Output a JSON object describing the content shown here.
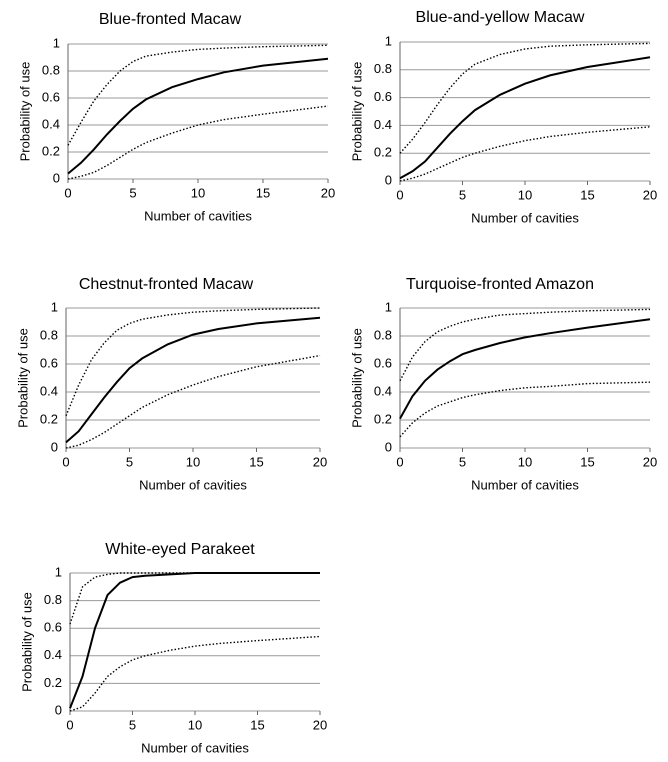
{
  "chart_data": [
    {
      "type": "line",
      "title": "Blue-fronted Macaw",
      "x_label": "Number of cavities",
      "y_label": "Probability of use",
      "x": [
        0,
        1,
        2,
        3,
        4,
        5,
        6,
        8,
        10,
        12,
        15,
        20
      ],
      "series": [
        {
          "color": "#000000",
          "style": "solid",
          "values": [
            0.04,
            0.12,
            0.22,
            0.33,
            0.43,
            0.52,
            0.59,
            0.68,
            0.74,
            0.79,
            0.84,
            0.89
          ]
        },
        {
          "color": "#000000",
          "style": "dotted",
          "values": [
            0.25,
            0.42,
            0.58,
            0.7,
            0.8,
            0.87,
            0.91,
            0.94,
            0.96,
            0.97,
            0.98,
            0.99
          ]
        },
        {
          "color": "#000000",
          "style": "dotted",
          "values": [
            0.0,
            0.02,
            0.05,
            0.1,
            0.16,
            0.22,
            0.27,
            0.34,
            0.4,
            0.44,
            0.48,
            0.54
          ]
        }
      ],
      "xlim": [
        0,
        20
      ],
      "xticks": [
        0,
        5,
        10,
        15,
        20
      ],
      "ylim": [
        0,
        1
      ],
      "yticks": [
        0,
        0.2,
        0.4,
        0.6,
        0.8,
        1
      ],
      "grid": true
    },
    {
      "type": "line",
      "title": "Blue-and-yellow Macaw",
      "x_label": "Number of cavities",
      "y_label": "Probability of use",
      "x": [
        0,
        1,
        2,
        3,
        4,
        5,
        6,
        8,
        10,
        12,
        15,
        20
      ],
      "series": [
        {
          "color": "#000000",
          "style": "solid",
          "values": [
            0.02,
            0.07,
            0.14,
            0.24,
            0.34,
            0.43,
            0.51,
            0.62,
            0.7,
            0.76,
            0.82,
            0.89
          ]
        },
        {
          "color": "#000000",
          "style": "dotted",
          "values": [
            0.2,
            0.3,
            0.42,
            0.55,
            0.67,
            0.77,
            0.84,
            0.91,
            0.95,
            0.97,
            0.98,
            0.99
          ]
        },
        {
          "color": "#000000",
          "style": "dotted",
          "values": [
            0.0,
            0.02,
            0.05,
            0.09,
            0.13,
            0.17,
            0.2,
            0.25,
            0.29,
            0.32,
            0.35,
            0.39
          ]
        }
      ],
      "xlim": [
        0,
        20
      ],
      "xticks": [
        0,
        5,
        10,
        15,
        20
      ],
      "ylim": [
        0,
        1
      ],
      "yticks": [
        0,
        0.2,
        0.4,
        0.6,
        0.8,
        1
      ],
      "grid": true
    },
    {
      "type": "line",
      "title": "Chestnut-fronted Macaw",
      "x_label": "Number of cavities",
      "y_label": "Probability of use",
      "x": [
        0,
        1,
        2,
        3,
        4,
        5,
        6,
        8,
        10,
        12,
        15,
        20
      ],
      "series": [
        {
          "color": "#000000",
          "style": "solid",
          "values": [
            0.04,
            0.12,
            0.24,
            0.36,
            0.47,
            0.57,
            0.64,
            0.74,
            0.81,
            0.85,
            0.89,
            0.93
          ]
        },
        {
          "color": "#000000",
          "style": "dotted",
          "values": [
            0.23,
            0.45,
            0.63,
            0.75,
            0.84,
            0.89,
            0.92,
            0.95,
            0.97,
            0.98,
            0.99,
            1.0
          ]
        },
        {
          "color": "#000000",
          "style": "dotted",
          "values": [
            0.0,
            0.02,
            0.06,
            0.11,
            0.17,
            0.23,
            0.29,
            0.38,
            0.45,
            0.51,
            0.58,
            0.66
          ]
        }
      ],
      "xlim": [
        0,
        20
      ],
      "xticks": [
        0,
        5,
        10,
        15,
        20
      ],
      "ylim": [
        0,
        1
      ],
      "yticks": [
        0,
        0.2,
        0.4,
        0.6,
        0.8,
        1
      ],
      "grid": true
    },
    {
      "type": "line",
      "title": "Turquoise-fronted Amazon",
      "x_label": "Number of cavities",
      "y_label": "Probability of use",
      "x": [
        0,
        1,
        2,
        3,
        4,
        5,
        6,
        8,
        10,
        12,
        15,
        20
      ],
      "series": [
        {
          "color": "#000000",
          "style": "solid",
          "values": [
            0.21,
            0.37,
            0.48,
            0.56,
            0.62,
            0.67,
            0.7,
            0.75,
            0.79,
            0.82,
            0.86,
            0.92
          ]
        },
        {
          "color": "#000000",
          "style": "dotted",
          "values": [
            0.48,
            0.65,
            0.76,
            0.83,
            0.87,
            0.9,
            0.92,
            0.95,
            0.96,
            0.97,
            0.98,
            0.99
          ]
        },
        {
          "color": "#000000",
          "style": "dotted",
          "values": [
            0.08,
            0.18,
            0.25,
            0.3,
            0.33,
            0.36,
            0.38,
            0.41,
            0.43,
            0.44,
            0.46,
            0.47
          ]
        }
      ],
      "xlim": [
        0,
        20
      ],
      "xticks": [
        0,
        5,
        10,
        15,
        20
      ],
      "ylim": [
        0,
        1
      ],
      "yticks": [
        0,
        0.2,
        0.4,
        0.6,
        0.8,
        1
      ],
      "grid": true
    },
    {
      "type": "line",
      "title": "White-eyed Parakeet",
      "x_label": "Number of cavities",
      "y_label": "Probability of use",
      "x": [
        0,
        1,
        2,
        3,
        4,
        5,
        6,
        8,
        10,
        12,
        15,
        20
      ],
      "series": [
        {
          "color": "#000000",
          "style": "solid",
          "values": [
            0.02,
            0.25,
            0.6,
            0.84,
            0.93,
            0.97,
            0.98,
            0.99,
            1,
            1,
            1,
            1
          ]
        },
        {
          "color": "#000000",
          "style": "dotted",
          "values": [
            0.63,
            0.9,
            0.97,
            0.99,
            1,
            1,
            1,
            1,
            1,
            1,
            1,
            1
          ]
        },
        {
          "color": "#000000",
          "style": "dotted",
          "values": [
            0.0,
            0.03,
            0.13,
            0.25,
            0.32,
            0.37,
            0.4,
            0.44,
            0.47,
            0.49,
            0.51,
            0.54
          ]
        }
      ],
      "xlim": [
        0,
        20
      ],
      "xticks": [
        0,
        5,
        10,
        15,
        20
      ],
      "ylim": [
        0,
        1
      ],
      "yticks": [
        0,
        0.2,
        0.4,
        0.6,
        0.8,
        1
      ],
      "grid": true
    }
  ]
}
